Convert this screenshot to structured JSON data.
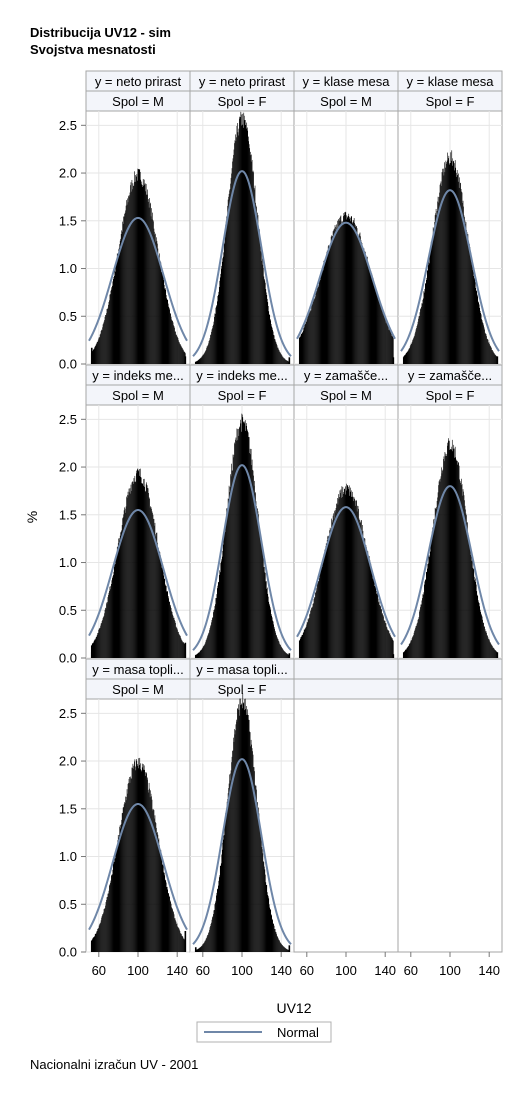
{
  "titles": [
    "Distribucija UV12 - sim",
    "Svojstva mesnatosti"
  ],
  "footnote": "Nacionalni izračun UV - 2001",
  "colors": {
    "bar": "#000000",
    "normal_curve": "#6f87a8",
    "header_fill": "#f3f5fa",
    "frame": "#a6a6a6",
    "grid": "#e6e6e6"
  },
  "chart_data": {
    "type": "bar",
    "layout": "panel-grid",
    "columns": 4,
    "xlabel": "UV12",
    "ylabel": "%",
    "xlim": [
      50,
      150
    ],
    "ylim": [
      0,
      2.65
    ],
    "xticks": [
      60,
      100,
      140
    ],
    "xtick_labels": [
      "60",
      "100",
      "140"
    ],
    "yticks": [
      0,
      0.5,
      1,
      1.5,
      2,
      2.5
    ],
    "ytick_labels": [
      "0.0",
      "0.5",
      "1.0",
      "1.5",
      "2.0",
      "2.5"
    ],
    "grid": true,
    "legend": {
      "position": "bottom",
      "entries": [
        {
          "name": "Normal",
          "type": "line"
        }
      ]
    },
    "panels": [
      {
        "header1": "y = neto prirast",
        "header2": "Spol = M",
        "peak": 1.98,
        "normal_peak": 1.53,
        "low_tail": 0.17,
        "high_tail": 0.08
      },
      {
        "header1": "y = neto prirast",
        "header2": "Spol = F",
        "peak": 2.56,
        "normal_peak": 2.02,
        "low_tail": 0.0,
        "high_tail": 0.07
      },
      {
        "header1": "y = klase mesa",
        "header2": "Spol = M",
        "peak": 1.55,
        "normal_peak": 1.48,
        "low_tail": 0.0,
        "high_tail": 0.07
      },
      {
        "header1": "y = klase mesa",
        "header2": "Spol = F",
        "peak": 2.16,
        "normal_peak": 1.82,
        "low_tail": 0.0,
        "high_tail": 0.08
      },
      {
        "header1": "y = indeks me...",
        "header2": "Spol = M",
        "peak": 1.93,
        "normal_peak": 1.55,
        "low_tail": 0.06,
        "high_tail": 0.16
      },
      {
        "header1": "y = indeks me...",
        "header2": "Spol = F",
        "peak": 2.47,
        "normal_peak": 2.02,
        "low_tail": 0.0,
        "high_tail": 0.05
      },
      {
        "header1": "y = zamašče...",
        "header2": "Spol = M",
        "peak": 1.77,
        "normal_peak": 1.58,
        "low_tail": 0.0,
        "high_tail": 0.04
      },
      {
        "header1": "y = zamašče...",
        "header2": "Spol = F",
        "peak": 2.24,
        "normal_peak": 1.8,
        "low_tail": 0.0,
        "high_tail": 0.06
      },
      {
        "header1": "y = masa topli...",
        "header2": "Spol = M",
        "peak": 1.98,
        "normal_peak": 1.55,
        "low_tail": 0.1,
        "high_tail": 0.22
      },
      {
        "header1": "y = masa topli...",
        "header2": "Spol = F",
        "peak": 2.62,
        "normal_peak": 2.02,
        "low_tail": 0.05,
        "high_tail": 0.07
      }
    ]
  }
}
